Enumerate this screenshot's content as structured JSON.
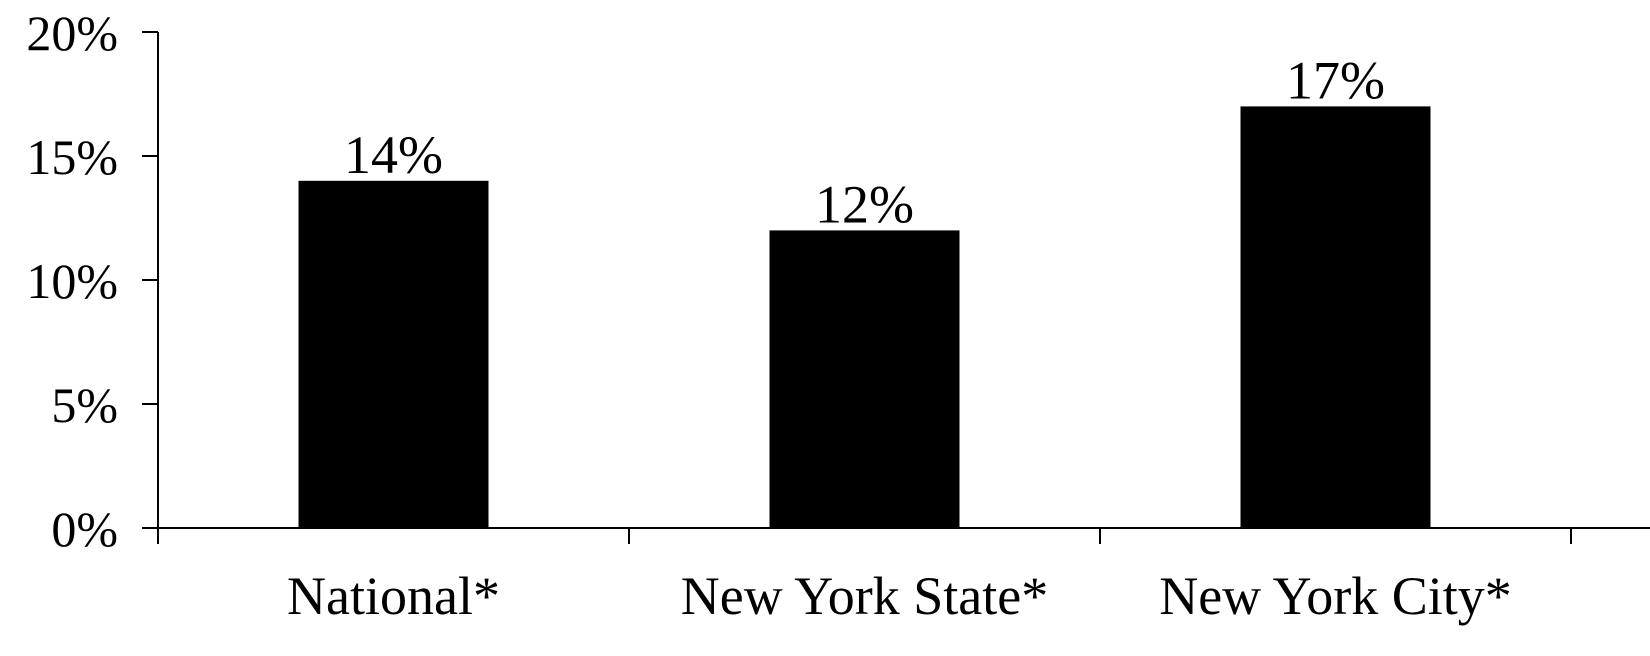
{
  "chart_data": {
    "type": "bar",
    "categories": [
      "National*",
      "New York State*",
      "New York City*"
    ],
    "values": [
      14,
      12,
      17
    ],
    "data_labels": [
      "14%",
      "12%",
      "17%"
    ],
    "title": "",
    "xlabel": "",
    "ylabel": "",
    "ylim": [
      0,
      20
    ],
    "yticks": [
      0,
      5,
      10,
      15,
      20
    ],
    "ytick_labels": [
      "0%",
      "5%",
      "10%",
      "15%",
      "20%"
    ],
    "grid": false,
    "legend": "none",
    "bar_color": "#000000"
  }
}
